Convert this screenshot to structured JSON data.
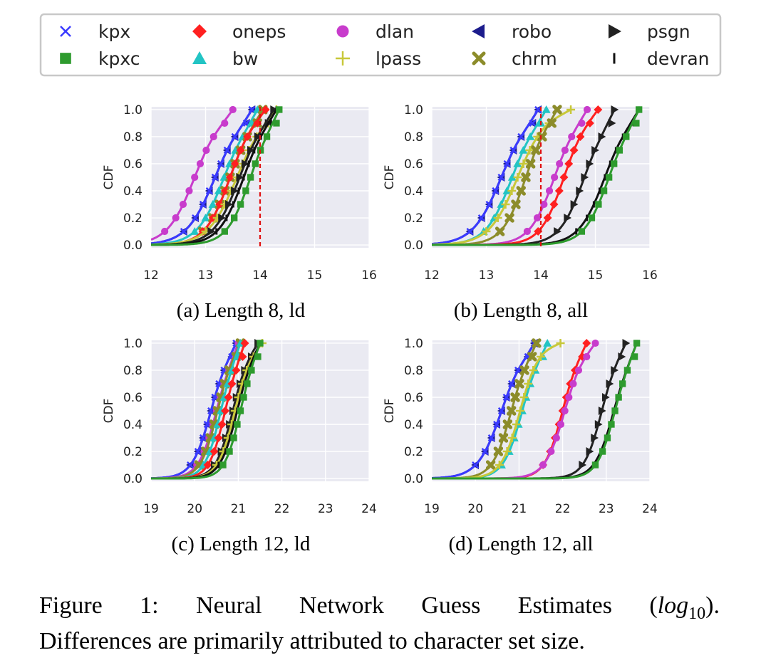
{
  "legend": {
    "items": [
      {
        "label": "kpx",
        "marker": "x",
        "color": "#3a3aff"
      },
      {
        "label": "oneps",
        "marker": "diamond",
        "color": "#ff2020"
      },
      {
        "label": "dlan",
        "marker": "circle",
        "color": "#c83ccc"
      },
      {
        "label": "robo",
        "marker": "tri-left",
        "color": "#1c1c8c"
      },
      {
        "label": "psgn",
        "marker": "tri-right",
        "color": "#222222"
      },
      {
        "label": "kpxc",
        "marker": "square",
        "color": "#2e9b2e"
      },
      {
        "label": "bw",
        "marker": "tri-up",
        "color": "#22c4c4"
      },
      {
        "label": "lpass",
        "marker": "plus",
        "color": "#c8c83a"
      },
      {
        "label": "chrm",
        "marker": "xfill",
        "color": "#8c8c2a"
      },
      {
        "label": "devran",
        "marker": "vline",
        "color": "#111111"
      }
    ]
  },
  "chart_data": [
    {
      "type": "line",
      "subcaption": "(a) Length 8, ld",
      "ylabel": "CDF",
      "xlim": [
        12,
        16
      ],
      "ylim": [
        0,
        1
      ],
      "xticks": [
        "12",
        "13",
        "14",
        "15",
        "16"
      ],
      "yticks": [
        "0.0",
        "0.2",
        "0.4",
        "0.6",
        "0.8",
        "1.0"
      ],
      "vline": 14.0,
      "series": [
        {
          "name": "dlan",
          "q10": 12.25,
          "q90": 13.35,
          "max": 13.5
        },
        {
          "name": "robo",
          "q10": 12.6,
          "q90": 13.75,
          "max": 13.85
        },
        {
          "name": "kpx",
          "q10": 12.6,
          "q90": 13.75,
          "max": 13.85
        },
        {
          "name": "bw",
          "q10": 12.8,
          "q90": 13.88,
          "max": 13.95
        },
        {
          "name": "chrm",
          "q10": 12.95,
          "q90": 13.95,
          "max": 14.05
        },
        {
          "name": "oneps",
          "q10": 12.95,
          "q90": 13.95,
          "max": 14.1
        },
        {
          "name": "lpass",
          "q10": 13.0,
          "q90": 14.15,
          "max": 14.3
        },
        {
          "name": "psgn",
          "q10": 13.1,
          "q90": 14.15,
          "max": 14.25
        },
        {
          "name": "devran",
          "q10": 13.2,
          "q90": 14.2,
          "max": 14.3
        },
        {
          "name": "kpxc",
          "q10": 13.35,
          "q90": 14.3,
          "max": 14.35
        }
      ]
    },
    {
      "type": "line",
      "subcaption": "(b) Length 8, all",
      "ylabel": "CDF",
      "xlim": [
        12,
        16
      ],
      "ylim": [
        0,
        1
      ],
      "xticks": [
        "12",
        "13",
        "14",
        "15",
        "16"
      ],
      "yticks": [
        "0.0",
        "0.2",
        "0.4",
        "0.6",
        "0.8",
        "1.0"
      ],
      "vline": 14.0,
      "series": [
        {
          "name": "robo",
          "q10": 12.7,
          "q90": 13.85,
          "max": 13.95
        },
        {
          "name": "kpx",
          "q10": 12.7,
          "q90": 13.85,
          "max": 13.95
        },
        {
          "name": "bw",
          "q10": 12.95,
          "q90": 14.0,
          "max": 14.1
        },
        {
          "name": "lpass",
          "q10": 13.0,
          "q90": 14.15,
          "max": 14.55
        },
        {
          "name": "chrm",
          "q10": 13.25,
          "q90": 14.2,
          "max": 14.3
        },
        {
          "name": "dlan",
          "q10": 13.75,
          "q90": 14.75,
          "max": 14.85
        },
        {
          "name": "oneps",
          "q10": 13.95,
          "q90": 14.9,
          "max": 15.05
        },
        {
          "name": "psgn",
          "q10": 14.3,
          "q90": 15.3,
          "max": 15.35
        },
        {
          "name": "devran",
          "q10": 14.65,
          "q90": 15.7,
          "max": 15.8
        },
        {
          "name": "kpxc",
          "q10": 14.75,
          "q90": 15.75,
          "max": 15.8
        }
      ]
    },
    {
      "type": "line",
      "subcaption": "(c) Length 12, ld",
      "ylabel": "CDF",
      "xlim": [
        19,
        24
      ],
      "ylim": [
        0,
        1
      ],
      "xticks": [
        "19",
        "20",
        "21",
        "22",
        "23",
        "24"
      ],
      "yticks": [
        "0.0",
        "0.2",
        "0.4",
        "0.6",
        "0.8",
        "1.0"
      ],
      "series": [
        {
          "name": "robo",
          "q10": 19.9,
          "q90": 20.85,
          "max": 20.95
        },
        {
          "name": "kpx",
          "q10": 19.9,
          "q90": 20.85,
          "max": 20.95
        },
        {
          "name": "dlan",
          "q10": 20.05,
          "q90": 20.95,
          "max": 21.0
        },
        {
          "name": "chrm",
          "q10": 20.1,
          "q90": 20.95,
          "max": 21.05
        },
        {
          "name": "bw",
          "q10": 20.2,
          "q90": 21.0,
          "max": 21.05
        },
        {
          "name": "oneps",
          "q10": 20.3,
          "q90": 21.1,
          "max": 21.15
        },
        {
          "name": "psgn",
          "q10": 20.45,
          "q90": 21.3,
          "max": 21.45
        },
        {
          "name": "lpass",
          "q10": 20.5,
          "q90": 21.35,
          "max": 21.55
        },
        {
          "name": "devran",
          "q10": 20.55,
          "q90": 21.4,
          "max": 21.5
        },
        {
          "name": "kpxc",
          "q10": 20.65,
          "q90": 21.45,
          "max": 21.5
        }
      ]
    },
    {
      "type": "line",
      "subcaption": "(d) Length 12, all",
      "ylabel": "CDF",
      "xlim": [
        19,
        24
      ],
      "ylim": [
        0,
        1
      ],
      "xticks": [
        "19",
        "20",
        "21",
        "22",
        "23",
        "24"
      ],
      "yticks": [
        "0.0",
        "0.2",
        "0.4",
        "0.6",
        "0.8",
        "1.0"
      ],
      "series": [
        {
          "name": "robo",
          "q10": 20.0,
          "q90": 21.2,
          "max": 21.35
        },
        {
          "name": "kpx",
          "q10": 20.0,
          "q90": 21.2,
          "max": 21.35
        },
        {
          "name": "chrm",
          "q10": 20.35,
          "q90": 21.3,
          "max": 21.4
        },
        {
          "name": "bw",
          "q10": 20.6,
          "q90": 21.55,
          "max": 21.65
        },
        {
          "name": "lpass",
          "q10": 20.55,
          "q90": 21.5,
          "max": 21.95
        },
        {
          "name": "oneps",
          "q10": 21.55,
          "q90": 22.45,
          "max": 22.55
        },
        {
          "name": "dlan",
          "q10": 21.55,
          "q90": 22.55,
          "max": 22.75
        },
        {
          "name": "psgn",
          "q10": 22.45,
          "q90": 23.35,
          "max": 23.45
        },
        {
          "name": "devran",
          "q10": 22.7,
          "q90": 23.65,
          "max": 23.7
        },
        {
          "name": "kpxc",
          "q10": 22.75,
          "q90": 23.65,
          "max": 23.7
        }
      ]
    }
  ],
  "caption": {
    "line1_prefix": "Figure 1:   Neural Network Guess Estimates (",
    "line1_italic": "log",
    "line1_sub": "10",
    "line1_suffix": ").",
    "line2": "Differences are primarily attributed to character set size."
  }
}
